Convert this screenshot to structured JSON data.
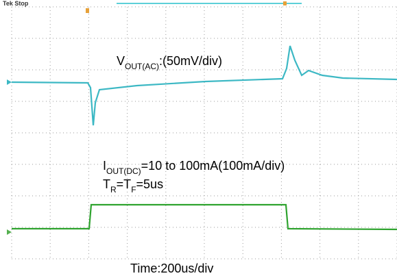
{
  "header": {
    "status": "Tek Stop"
  },
  "annotations": {
    "vout": {
      "main": "V",
      "sub": "OUT(AC)",
      "rest": ":(50mV/div)"
    },
    "iout": {
      "main": "I",
      "sub": "OUT(DC)",
      "rest": "=10 to 100mA(100mA/div)"
    },
    "rise": {
      "t1": "T",
      "s1": "R",
      "mid": "=T",
      "s2": "F",
      "rest": "=5us"
    }
  },
  "footer": {
    "time": "Time:200us/div"
  }
}
